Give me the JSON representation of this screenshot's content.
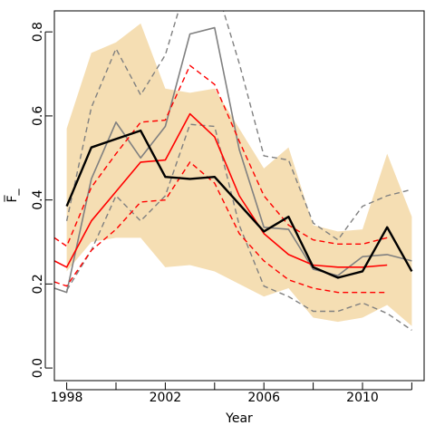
{
  "chart_data": {
    "type": "line",
    "xlabel": "Year",
    "ylabel": "F̅_",
    "xlim": [
      1997.5,
      2012.5
    ],
    "ylim": [
      -0.03,
      0.85
    ],
    "x_ticks": [
      1998,
      2000,
      2002,
      2004,
      2006,
      2008,
      2010,
      2012
    ],
    "x_tick_labels": [
      "1998",
      "",
      "2002",
      "",
      "2006",
      "",
      "2010",
      ""
    ],
    "y_ticks": [
      0.0,
      0.2,
      0.4,
      0.6,
      0.8
    ],
    "y_tick_labels": [
      "0.0",
      "0.2",
      "0.4",
      "0.6",
      "0.8"
    ],
    "grid": false,
    "legend": "none",
    "band": {
      "color": "#f5deb3",
      "x": [
        1998,
        1999,
        2000,
        2001,
        2002,
        2003,
        2004,
        2005,
        2006,
        2007,
        2008,
        2009,
        2010,
        2011,
        2012
      ],
      "lower": [
        0.23,
        0.3,
        0.31,
        0.31,
        0.24,
        0.245,
        0.23,
        0.2,
        0.17,
        0.19,
        0.12,
        0.11,
        0.12,
        0.15,
        0.1
      ],
      "upper": [
        0.57,
        0.75,
        0.775,
        0.82,
        0.665,
        0.655,
        0.665,
        0.57,
        0.475,
        0.525,
        0.34,
        0.325,
        0.33,
        0.51,
        0.36
      ]
    },
    "series": [
      {
        "color": "#808080",
        "style": "solid",
        "width": 1.6,
        "x": [
          1997.5,
          1998,
          1999,
          2000,
          2001,
          2002,
          2003,
          2004,
          2005,
          2006,
          2007,
          2008,
          2009,
          2010,
          2011,
          2012
        ],
        "values": [
          0.19,
          0.18,
          0.45,
          0.585,
          0.5,
          0.575,
          0.795,
          0.81,
          0.52,
          0.335,
          0.33,
          0.235,
          0.22,
          0.265,
          0.27,
          0.255
        ]
      },
      {
        "color": "#808080",
        "style": "dashed",
        "width": 1.4,
        "x": [
          1998,
          1999,
          2000,
          2001,
          2002,
          2003,
          2004,
          2005,
          2006,
          2007,
          2008,
          2009,
          2010,
          2011,
          2012
        ],
        "values": [
          0.35,
          0.62,
          0.76,
          0.65,
          0.745,
          0.94,
          0.92,
          0.725,
          0.505,
          0.495,
          0.345,
          0.305,
          0.385,
          0.41,
          0.425
        ]
      },
      {
        "color": "#808080",
        "style": "dashed",
        "width": 1.4,
        "x": [
          1998,
          1999,
          2000,
          2001,
          2002,
          2003,
          2004,
          2005,
          2006,
          2007,
          2008,
          2009,
          2010,
          2011,
          2012
        ],
        "values": [
          0.185,
          0.28,
          0.41,
          0.35,
          0.41,
          0.58,
          0.575,
          0.34,
          0.195,
          0.17,
          0.135,
          0.135,
          0.155,
          0.13,
          0.09
        ]
      },
      {
        "color": "#ff0000",
        "style": "solid",
        "width": 1.6,
        "x": [
          1997.5,
          1998,
          1999,
          2000,
          2001,
          2002,
          2003,
          2004,
          2005,
          2006,
          2007,
          2008,
          2009,
          2010,
          2011
        ],
        "values": [
          0.255,
          0.24,
          0.35,
          0.42,
          0.49,
          0.495,
          0.605,
          0.55,
          0.41,
          0.32,
          0.27,
          0.245,
          0.24,
          0.24,
          0.245
        ]
      },
      {
        "color": "#ff0000",
        "style": "dashed",
        "width": 1.4,
        "x": [
          1997.5,
          1998,
          1999,
          2000,
          2001,
          2002,
          2003,
          2004,
          2005,
          2006,
          2007,
          2008,
          2009,
          2010,
          2011
        ],
        "values": [
          0.31,
          0.29,
          0.43,
          0.51,
          0.585,
          0.59,
          0.72,
          0.675,
          0.54,
          0.41,
          0.34,
          0.305,
          0.295,
          0.295,
          0.31
        ]
      },
      {
        "color": "#ff0000",
        "style": "dashed",
        "width": 1.4,
        "x": [
          1997.5,
          1998,
          1999,
          2000,
          2001,
          2002,
          2003,
          2004,
          2005,
          2006,
          2007,
          2008,
          2009,
          2010,
          2011
        ],
        "values": [
          0.205,
          0.195,
          0.28,
          0.33,
          0.395,
          0.4,
          0.49,
          0.44,
          0.32,
          0.255,
          0.21,
          0.19,
          0.18,
          0.18,
          0.18
        ]
      },
      {
        "color": "#000000",
        "style": "solid",
        "width": 2.4,
        "x": [
          1998,
          1999,
          2000,
          2001,
          2002,
          2003,
          2004,
          2005,
          2006,
          2007,
          2008,
          2009,
          2010,
          2011,
          2012
        ],
        "values": [
          0.385,
          0.525,
          0.545,
          0.565,
          0.455,
          0.45,
          0.455,
          0.39,
          0.325,
          0.36,
          0.24,
          0.215,
          0.23,
          0.335,
          0.23
        ]
      }
    ]
  }
}
